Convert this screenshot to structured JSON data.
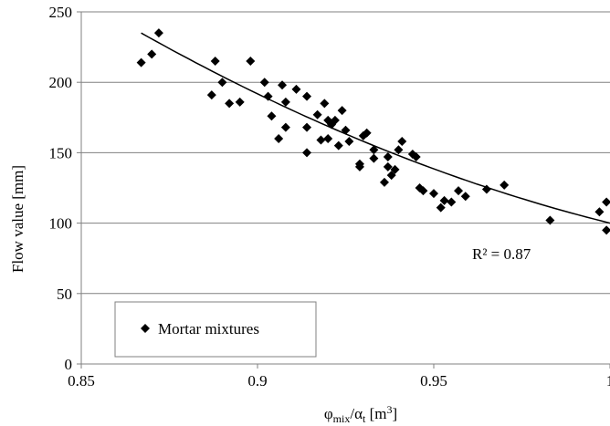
{
  "chart_data": {
    "type": "scatter",
    "xlim": [
      0.85,
      1.0
    ],
    "ylim": [
      0,
      250
    ],
    "x_ticks": [
      0.85,
      0.9,
      0.95,
      1.0
    ],
    "x_tick_labels": [
      "0.85",
      "0.9",
      "0.95",
      "1"
    ],
    "y_ticks": [
      0,
      50,
      100,
      150,
      200,
      250
    ],
    "y_tick_labels": [
      "0",
      "50",
      "100",
      "150",
      "200",
      "250"
    ],
    "xlabel": {
      "base1": "φ",
      "sub1": "mix",
      "mid": "/α",
      "sub2": "t",
      "tail": " [m",
      "sup": "3",
      "end": "]"
    },
    "ylabel": "Flow value [mm]",
    "grid": {
      "horizontal": true,
      "vertical": false
    },
    "annotation": "R² = 0.87",
    "legend": {
      "placement": "bottom-left",
      "label": "Mortar mixtures"
    },
    "series": [
      {
        "name": "Mortar mixtures",
        "marker": "diamond",
        "color": "#000000",
        "points": [
          [
            0.867,
            214
          ],
          [
            0.87,
            220
          ],
          [
            0.872,
            235
          ],
          [
            0.887,
            191
          ],
          [
            0.888,
            215
          ],
          [
            0.89,
            200
          ],
          [
            0.892,
            185
          ],
          [
            0.895,
            186
          ],
          [
            0.898,
            215
          ],
          [
            0.902,
            200
          ],
          [
            0.903,
            190
          ],
          [
            0.904,
            176
          ],
          [
            0.906,
            160
          ],
          [
            0.907,
            198
          ],
          [
            0.908,
            186
          ],
          [
            0.908,
            168
          ],
          [
            0.911,
            195
          ],
          [
            0.914,
            190
          ],
          [
            0.914,
            168
          ],
          [
            0.914,
            150
          ],
          [
            0.917,
            177
          ],
          [
            0.918,
            159
          ],
          [
            0.919,
            185
          ],
          [
            0.92,
            173
          ],
          [
            0.92,
            160
          ],
          [
            0.921,
            170
          ],
          [
            0.922,
            173
          ],
          [
            0.923,
            155
          ],
          [
            0.924,
            180
          ],
          [
            0.925,
            166
          ],
          [
            0.926,
            158
          ],
          [
            0.929,
            142
          ],
          [
            0.929,
            140
          ],
          [
            0.93,
            162
          ],
          [
            0.931,
            164
          ],
          [
            0.933,
            152
          ],
          [
            0.933,
            146
          ],
          [
            0.936,
            129
          ],
          [
            0.937,
            147
          ],
          [
            0.937,
            140
          ],
          [
            0.938,
            134
          ],
          [
            0.939,
            138
          ],
          [
            0.94,
            152
          ],
          [
            0.941,
            158
          ],
          [
            0.944,
            149
          ],
          [
            0.945,
            147
          ],
          [
            0.946,
            125
          ],
          [
            0.947,
            123
          ],
          [
            0.95,
            121
          ],
          [
            0.952,
            111
          ],
          [
            0.953,
            116
          ],
          [
            0.955,
            115
          ],
          [
            0.957,
            123
          ],
          [
            0.959,
            119
          ],
          [
            0.965,
            124
          ],
          [
            0.97,
            127
          ],
          [
            0.983,
            102
          ],
          [
            0.997,
            108
          ],
          [
            0.999,
            115
          ],
          [
            0.999,
            95
          ]
        ]
      }
    ],
    "trendline": {
      "type": "polynomial-2",
      "color": "#000000",
      "x_range": [
        0.867,
        1.0
      ],
      "points": [
        [
          0.867,
          235
        ],
        [
          0.933,
          155
        ],
        [
          1.0,
          100
        ]
      ]
    }
  }
}
